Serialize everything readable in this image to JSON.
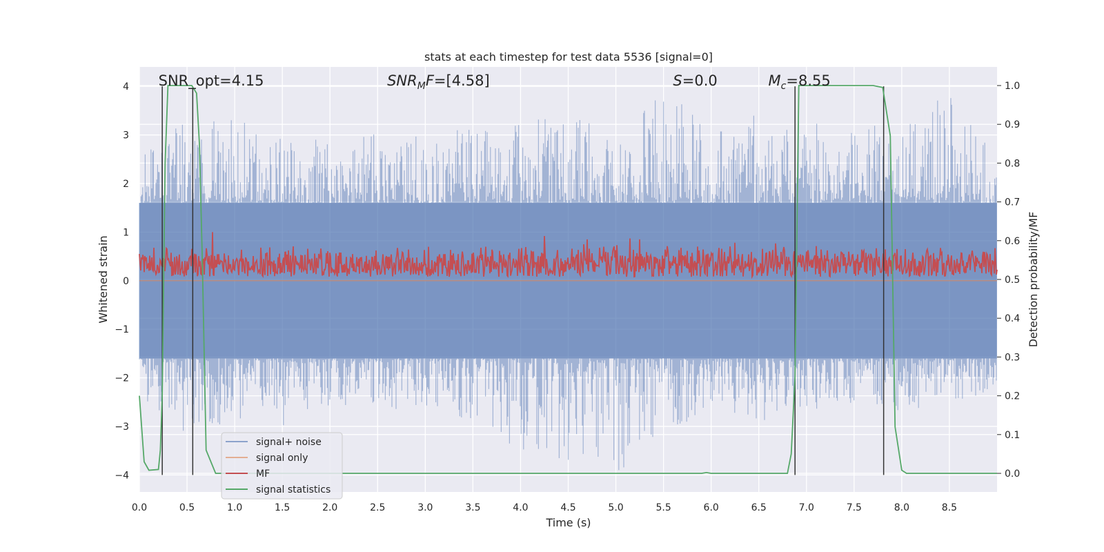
{
  "chart_data": {
    "type": "line",
    "title": "stats at each timestep for test data 5536 [signal=0]",
    "xlabel": "Time (s)",
    "ylabel": "Whitened strain",
    "ylabel_right": "Detection probability/MF",
    "xlim": [
      0.0,
      9.0
    ],
    "ylim": [
      -4.35,
      4.4
    ],
    "ylim_right": [
      -0.048,
      1.048
    ],
    "grid": true,
    "x_ticks": [
      "0.0",
      "0.5",
      "1.0",
      "1.5",
      "2.0",
      "2.5",
      "3.0",
      "3.5",
      "4.0",
      "4.5",
      "5.0",
      "5.5",
      "6.0",
      "6.5",
      "7.0",
      "7.5",
      "8.0",
      "8.5"
    ],
    "y_ticks": [
      "−4",
      "−3",
      "−2",
      "−1",
      "0",
      "1",
      "2",
      "3",
      "4"
    ],
    "y_right_ticks": [
      "0.0",
      "0.1",
      "0.2",
      "0.3",
      "0.4",
      "0.5",
      "0.6",
      "0.7",
      "0.8",
      "0.9",
      "1.0"
    ],
    "legend_position": "lower-left",
    "annotations": [
      {
        "label": "SNR_opt=4.15",
        "italic_part": "",
        "x": 0.2
      },
      {
        "label": "=[4.58]",
        "italic_part": "SNR",
        "sub": "M",
        "italic_after": "F",
        "x": 2.6
      },
      {
        "label": "=0.0",
        "italic_part": "S",
        "x": 5.6
      },
      {
        "label": "=8.55",
        "italic_part": "M",
        "sub": "c",
        "x": 6.6
      }
    ],
    "series": [
      {
        "name": "signal+ noise",
        "color": "#4c72b0",
        "axis": "left",
        "style": "noise",
        "envelope_x": [
          0.0,
          0.5,
          1.0,
          1.5,
          2.0,
          2.5,
          3.0,
          3.5,
          4.0,
          4.5,
          5.0,
          5.5,
          6.0,
          6.5,
          7.0,
          7.5,
          8.0,
          8.5,
          9.0
        ],
        "envelope_upper": [
          2.6,
          3.3,
          3.5,
          2.9,
          3.0,
          3.1,
          3.0,
          3.2,
          3.3,
          3.4,
          3.1,
          3.9,
          3.2,
          3.5,
          3.3,
          3.2,
          3.3,
          4.0,
          2.6
        ],
        "envelope_lower": [
          -2.4,
          -3.2,
          -2.9,
          -3.1,
          -2.8,
          -2.7,
          -2.6,
          -2.9,
          -3.5,
          -3.7,
          -4.0,
          -3.2,
          -2.6,
          -2.9,
          -2.8,
          -2.5,
          -2.7,
          -2.5,
          -2.3
        ]
      },
      {
        "name": "signal only",
        "color": "#dd8452",
        "axis": "left",
        "x": [
          0.0,
          9.0
        ],
        "values": [
          0.0,
          0.0
        ]
      },
      {
        "name": "MF",
        "color": "#c44e52",
        "axis": "left",
        "style": "noise",
        "baseline": 0.08,
        "envelope_x": [
          0.0,
          1.0,
          2.0,
          3.0,
          4.0,
          5.0,
          6.0,
          7.0,
          8.0,
          9.0
        ],
        "envelope_upper": [
          0.75,
          0.75,
          0.75,
          0.72,
          0.78,
          0.8,
          0.8,
          0.8,
          0.72,
          0.75
        ],
        "spikes": [
          [
            0.77,
            1.0
          ],
          [
            4.25,
            0.92
          ],
          [
            4.7,
            0.85
          ],
          [
            5.15,
            0.87
          ],
          [
            5.25,
            0.85
          ],
          [
            6.25,
            0.78
          ]
        ]
      },
      {
        "name": "signal statistics",
        "color": "#55a868",
        "axis": "right",
        "x": [
          0.0,
          0.05,
          0.1,
          0.2,
          0.22,
          0.24,
          0.27,
          0.3,
          0.55,
          0.6,
          0.63,
          0.66,
          0.7,
          0.8,
          5.9,
          5.95,
          6.0,
          6.8,
          6.84,
          6.88,
          6.92,
          7.0,
          7.7,
          7.8,
          7.88,
          7.93,
          8.0,
          8.05,
          8.1,
          9.0
        ],
        "values": [
          0.2,
          0.03,
          0.008,
          0.01,
          0.06,
          0.2,
          0.8,
          1.0,
          1.0,
          0.98,
          0.85,
          0.55,
          0.06,
          0.0,
          0.0,
          0.002,
          0.0,
          0.0,
          0.05,
          0.25,
          1.0,
          1.0,
          1.0,
          0.995,
          0.87,
          0.12,
          0.008,
          0.0,
          0.0,
          0.0
        ]
      }
    ],
    "vertical_markers": {
      "color": "#333333",
      "x": [
        0.24,
        0.56,
        6.88,
        7.81
      ],
      "from": -4.0,
      "to": 4.0
    }
  }
}
